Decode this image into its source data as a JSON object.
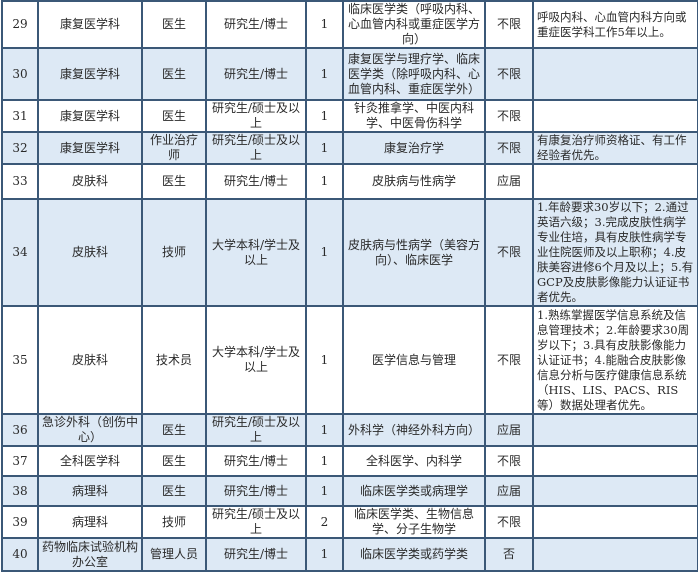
{
  "colors": {
    "border": "#3b5877",
    "alt_row": "#dde9f5"
  },
  "rows": [
    {
      "no": "29",
      "dept": "康复医学科",
      "post": "医生",
      "edu": "研究生/博士",
      "count": "1",
      "major": "临床医学类（呼吸内科、心血管内科或重症医学方向）",
      "exp": "不限",
      "req": "呼吸内科、心血管内科方向或重症医学科工作5年以上。"
    },
    {
      "no": "30",
      "dept": "康复医学科",
      "post": "医生",
      "edu": "研究生/博士",
      "count": "1",
      "major": "康复医学与理疗学、临床医学类（除呼吸内科、心血管内科、重症医学外）",
      "exp": "不限",
      "req": ""
    },
    {
      "no": "31",
      "dept": "康复医学科",
      "post": "医生",
      "edu": "研究生/硕士及以上",
      "count": "1",
      "major": "针灸推拿学、中医内科学、中医骨伤科学",
      "exp": "不限",
      "req": ""
    },
    {
      "no": "32",
      "dept": "康复医学科",
      "post": "作业治疗师",
      "edu": "研究生/硕士及以上",
      "count": "1",
      "major": "康复治疗学",
      "exp": "不限",
      "req": "有康复治疗师资格证、有工作经验者优先。"
    },
    {
      "no": "33",
      "dept": "皮肤科",
      "post": "医生",
      "edu": "研究生/博士",
      "count": "1",
      "major": "皮肤病与性病学",
      "exp": "应届",
      "req": ""
    },
    {
      "no": "34",
      "dept": "皮肤科",
      "post": "技师",
      "edu": "大学本科/学士及以上",
      "count": "1",
      "major": "皮肤病与性病学（美容方向）、临床医学",
      "exp": "不限",
      "req": "1.年龄要求30岁以下；2.通过英语六级；3.完成皮肤性病学专业住培，具有皮肤性病学专业住院医师及以上职称；4.皮肤美容进修6个月及以上；5.有GCP及皮肤影像能力认证证书者优先。"
    },
    {
      "no": "35",
      "dept": "皮肤科",
      "post": "技术员",
      "edu": "大学本科/学士及以上",
      "count": "1",
      "major": "医学信息与管理",
      "exp": "不限",
      "req": "1.熟练掌握医学信息系统及信息管理技术；2.年龄要求30周岁以下；3.具有皮肤影像能力认证证书；4.能融合皮肤影像信息分析与医疗健康信息系统（HIS、LIS、PACS、RIS等）数据处理者优先。"
    },
    {
      "no": "36",
      "dept": "急诊外科（创伤中心）",
      "post": "医生",
      "edu": "研究生/硕士及以上",
      "count": "1",
      "major": "外科学（神经外科方向）",
      "exp": "应届",
      "req": ""
    },
    {
      "no": "37",
      "dept": "全科医学科",
      "post": "医生",
      "edu": "研究生/博士",
      "count": "1",
      "major": "全科医学、内科学",
      "exp": "不限",
      "req": ""
    },
    {
      "no": "38",
      "dept": "病理科",
      "post": "医生",
      "edu": "研究生/博士",
      "count": "1",
      "major": "临床医学类或病理学",
      "exp": "应届",
      "req": ""
    },
    {
      "no": "39",
      "dept": "病理科",
      "post": "技师",
      "edu": "研究生/硕士及以上",
      "count": "2",
      "major": "临床医学类、生物信息学、分子生物学",
      "exp": "不限",
      "req": ""
    },
    {
      "no": "40",
      "dept": "药物临床试验机构办公室",
      "post": "管理人员",
      "edu": "研究生/博士",
      "count": "1",
      "major": "临床医学类或药学类",
      "exp": "否",
      "req": ""
    }
  ]
}
